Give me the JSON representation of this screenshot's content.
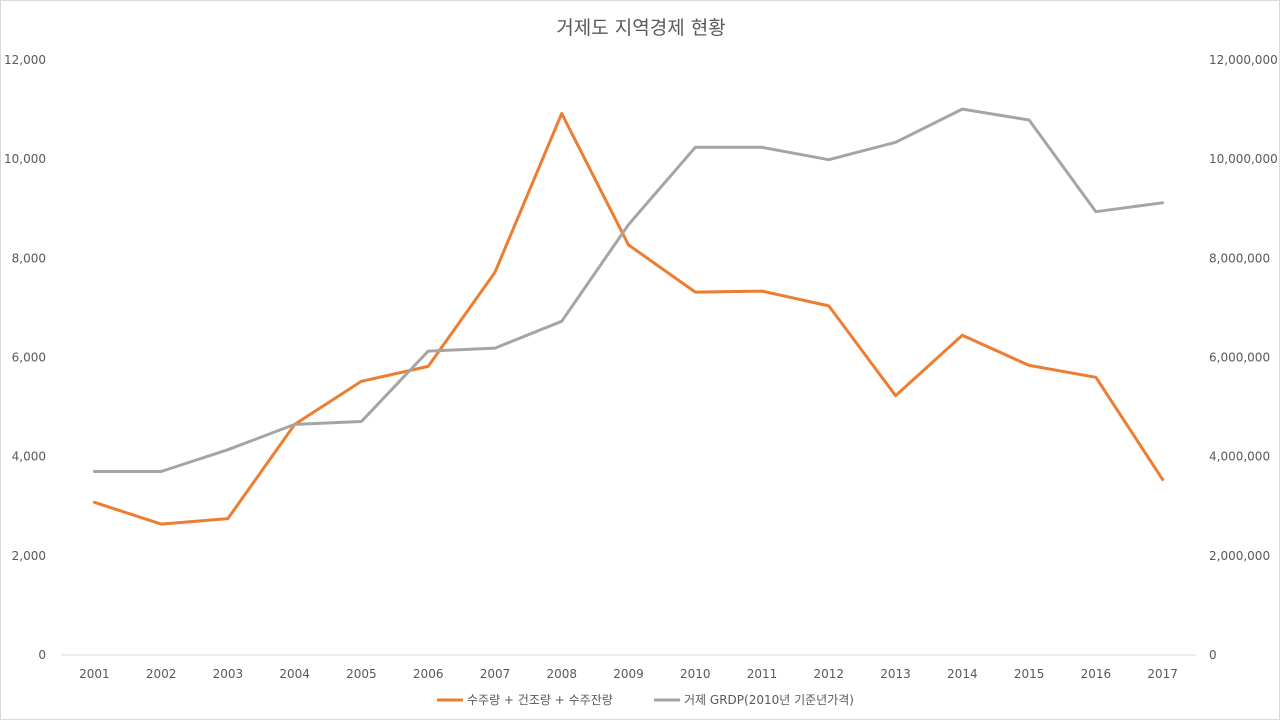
{
  "chart_data": {
    "type": "line",
    "title": "거제도 지역경제 현황",
    "categories": [
      "2001",
      "2002",
      "2003",
      "2004",
      "2005",
      "2006",
      "2007",
      "2008",
      "2009",
      "2010",
      "2011",
      "2012",
      "2013",
      "2014",
      "2015",
      "2016",
      "2017"
    ],
    "series": [
      {
        "name": "수주량 + 건조량 + 수주잔량",
        "axis": "left",
        "color": "#ED7D31",
        "values": [
          3080,
          2640,
          2750,
          4650,
          5520,
          5820,
          7720,
          10920,
          8270,
          7320,
          7340,
          7040,
          5230,
          6450,
          5840,
          5600,
          3540
        ]
      },
      {
        "name": "거제 GRDP(2010년 기준년가격)",
        "axis": "right",
        "color": "#A5A5A5",
        "values": [
          3700000,
          3700000,
          4140000,
          4650000,
          4710000,
          6130000,
          6190000,
          6730000,
          8680000,
          10240000,
          10240000,
          9990000,
          10340000,
          11010000,
          10790000,
          8940000,
          9120000
        ]
      }
    ],
    "y_left": {
      "min": 0,
      "max": 12000,
      "ticks": [
        "0",
        "2,000",
        "4,000",
        "6,000",
        "8,000",
        "10,000",
        "12,000"
      ]
    },
    "y_right": {
      "min": 0,
      "max": 12000000,
      "ticks": [
        "0",
        "2,000,000",
        "4,000,000",
        "6,000,000",
        "8,000,000",
        "10,000,000",
        "12,000,000"
      ]
    },
    "grid": false,
    "legend_position": "bottom"
  }
}
